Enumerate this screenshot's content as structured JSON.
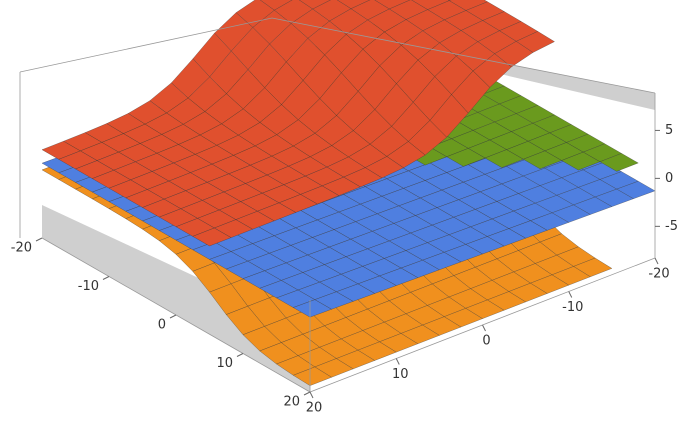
{
  "chart_data": {
    "type": "surface3d",
    "xlim": [
      -20,
      20
    ],
    "xticks": [
      -20,
      -10,
      0,
      10,
      20
    ],
    "ylim": [
      -20,
      20
    ],
    "yticks": [
      -20,
      -10,
      0,
      10,
      20
    ],
    "zlim": [
      -8.3,
      8.9
    ],
    "zticks": [
      -5,
      0,
      5
    ],
    "colors": [
      "#f0901e",
      "#4f7fe0",
      "#6a9a1e",
      "#e0502e"
    ]
  }
}
